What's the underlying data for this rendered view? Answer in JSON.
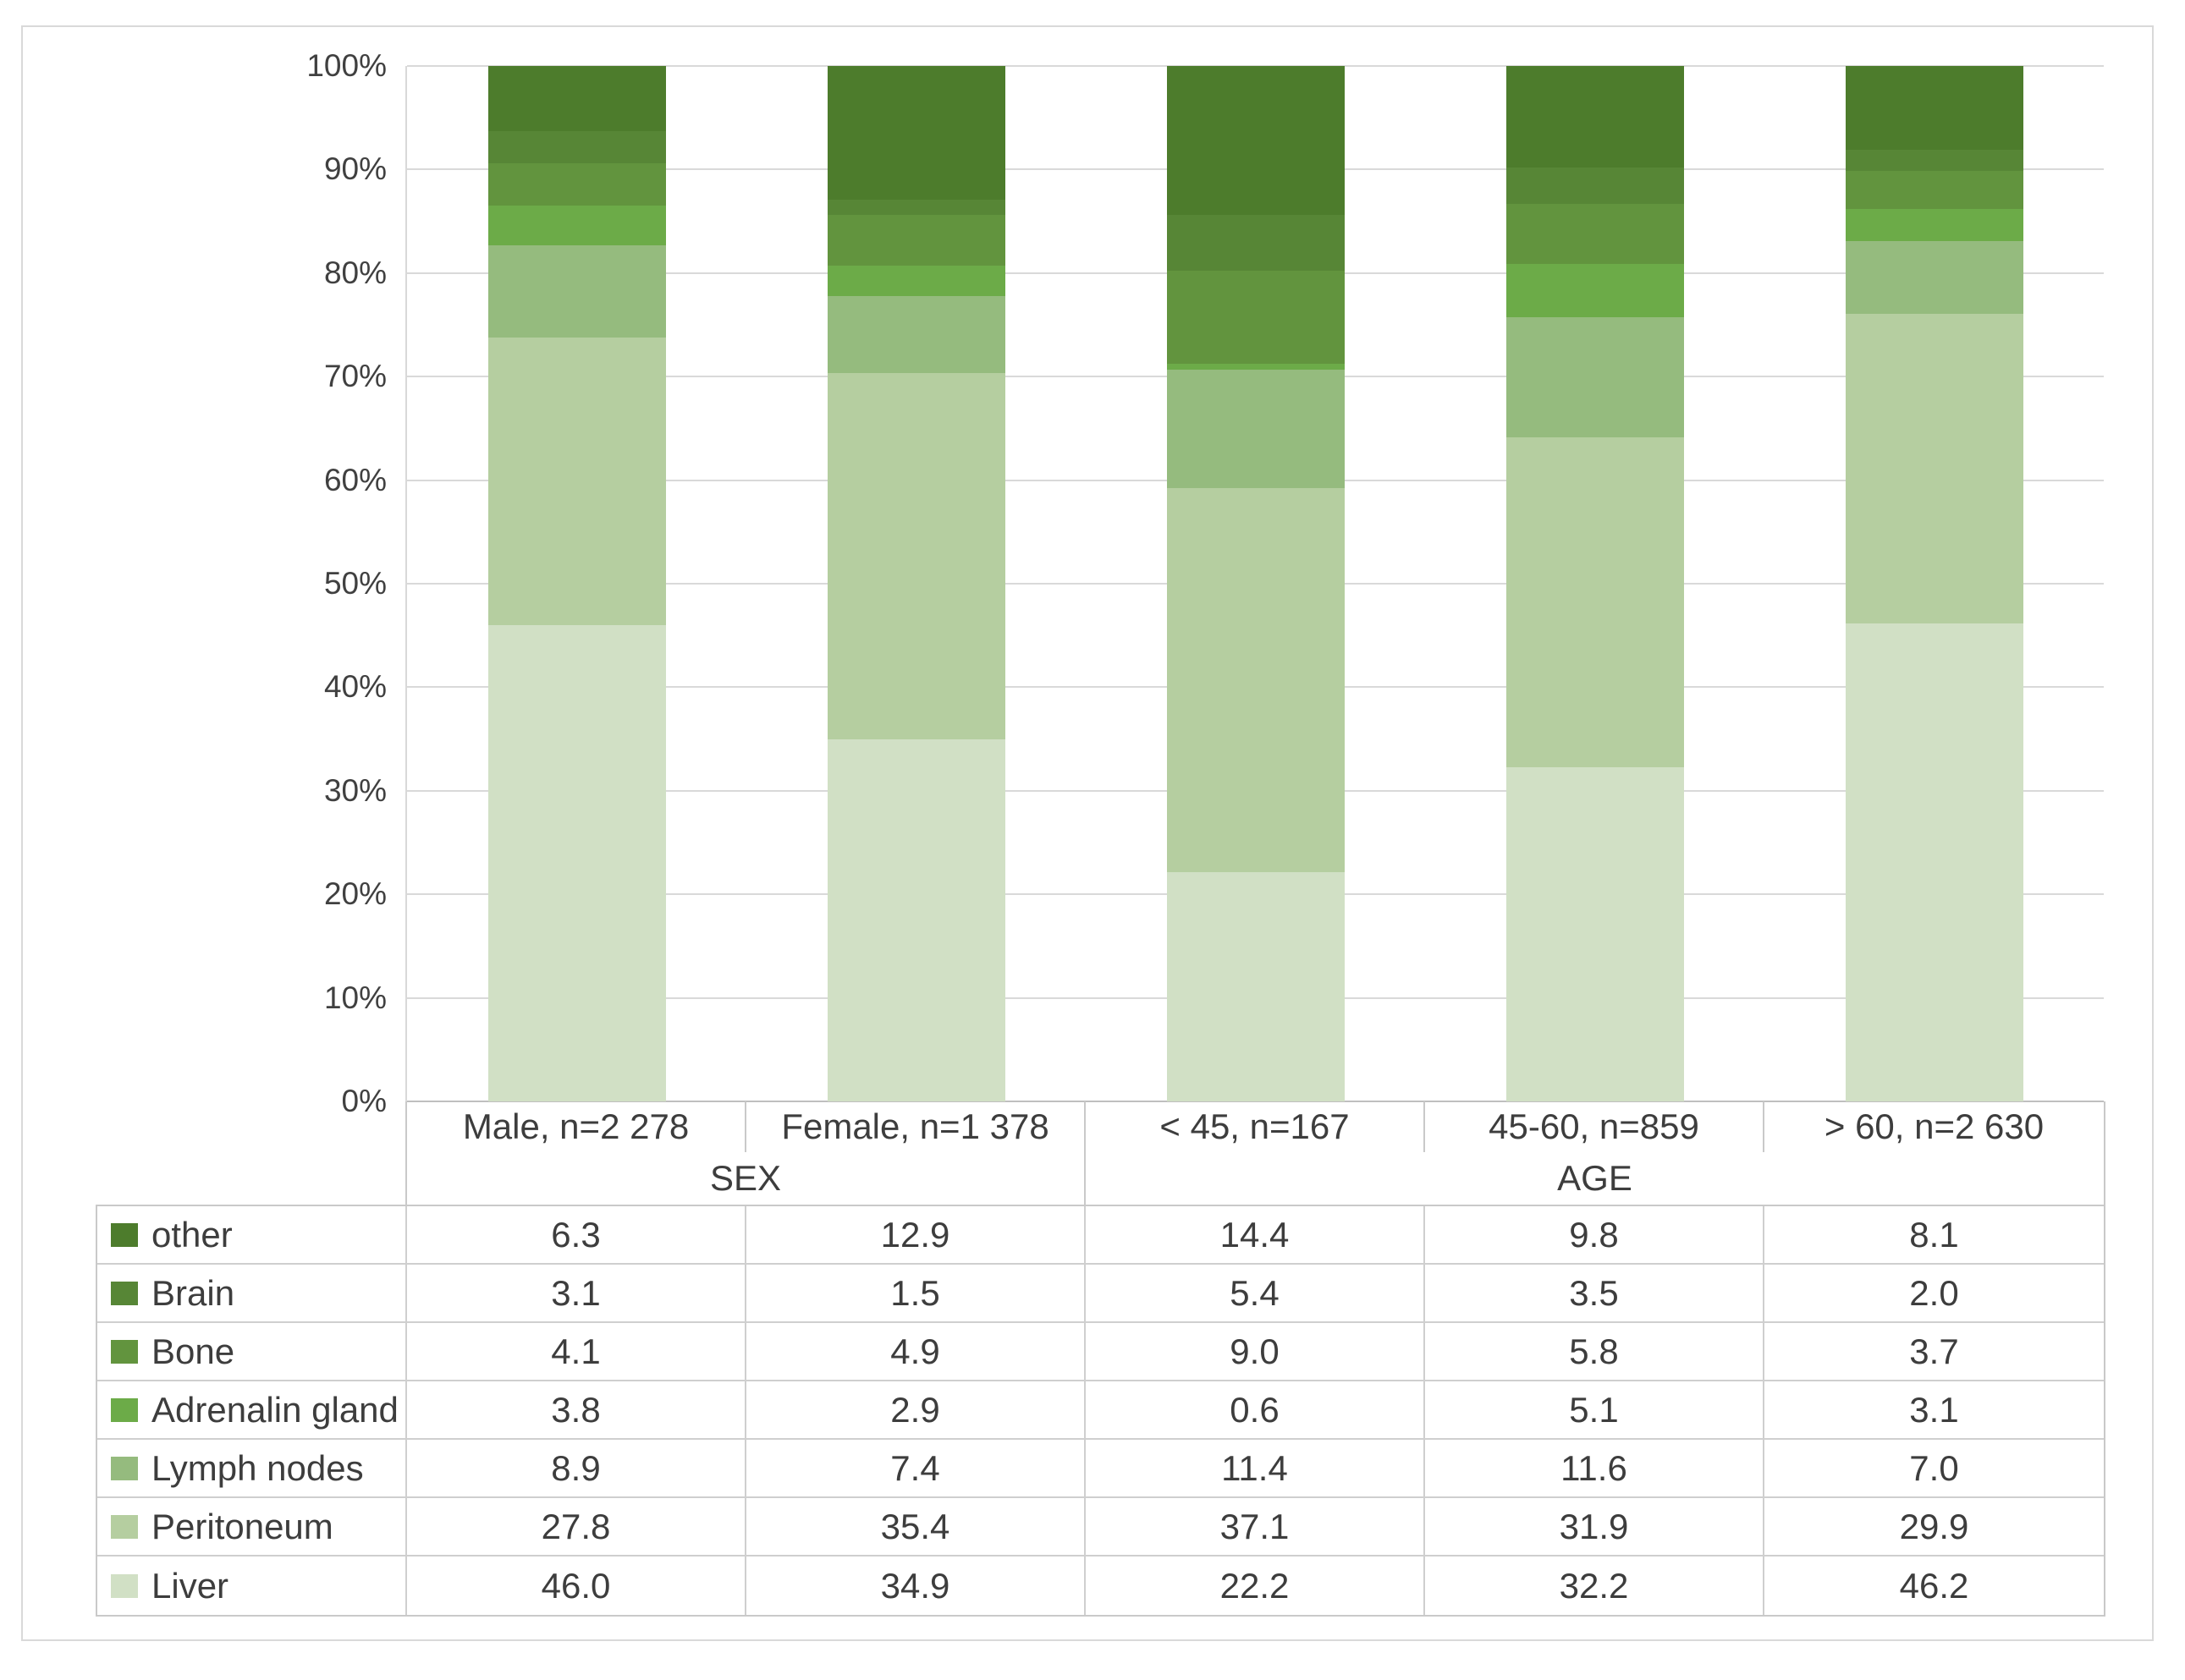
{
  "chart_data": {
    "type": "bar",
    "stacked": true,
    "percent_stacked": true,
    "title": "",
    "categories": [
      "Male, n=2 278",
      "Female, n=1 378",
      "< 45, n=167",
      "45-60, n=859",
      "> 60, n=2 630"
    ],
    "category_groups": [
      {
        "label": "SEX",
        "span": 2
      },
      {
        "label": "AGE",
        "span": 3
      }
    ],
    "series": [
      {
        "name": "other",
        "color": "#4d7c2c",
        "values": [
          6.3,
          12.9,
          14.4,
          9.8,
          8.1
        ]
      },
      {
        "name": "Brain",
        "color": "#578636",
        "values": [
          3.1,
          1.5,
          5.4,
          3.5,
          2.0
        ]
      },
      {
        "name": "Bone",
        "color": "#62943e",
        "values": [
          4.1,
          4.9,
          9.0,
          5.8,
          3.7
        ]
      },
      {
        "name": "Adrenalin gland",
        "color": "#6cab48",
        "values": [
          3.8,
          2.9,
          0.6,
          5.1,
          3.1
        ]
      },
      {
        "name": "Lymph nodes",
        "color": "#95bb7e",
        "values": [
          8.9,
          7.4,
          11.4,
          11.6,
          7.0
        ]
      },
      {
        "name": "Peritoneum",
        "color": "#b5cea0",
        "values": [
          27.8,
          35.4,
          37.1,
          31.9,
          29.9
        ]
      },
      {
        "name": "Liver",
        "color": "#d1e0c5",
        "values": [
          46.0,
          34.9,
          22.2,
          32.2,
          46.2
        ]
      }
    ],
    "stack_order_bottom_to_top": [
      "Liver",
      "Peritoneum",
      "Lymph nodes",
      "Adrenalin gland",
      "Bone",
      "Brain",
      "other"
    ],
    "y_axis": {
      "min": 0,
      "max": 100,
      "step": 10,
      "tick_labels": [
        "0%",
        "10%",
        "20%",
        "30%",
        "40%",
        "50%",
        "60%",
        "70%",
        "80%",
        "90%",
        "100%"
      ]
    },
    "grid": true,
    "legend_position": "table-left",
    "value_decimals": 1
  },
  "style": {
    "text_color": "#3d3d3d",
    "gridline_color": "#d9d9d9",
    "axis_line_color": "#bfbfbf",
    "table_border_color": "#c9c9c9",
    "frame_border_color": "#d9d9d9",
    "background": "#ffffff"
  }
}
